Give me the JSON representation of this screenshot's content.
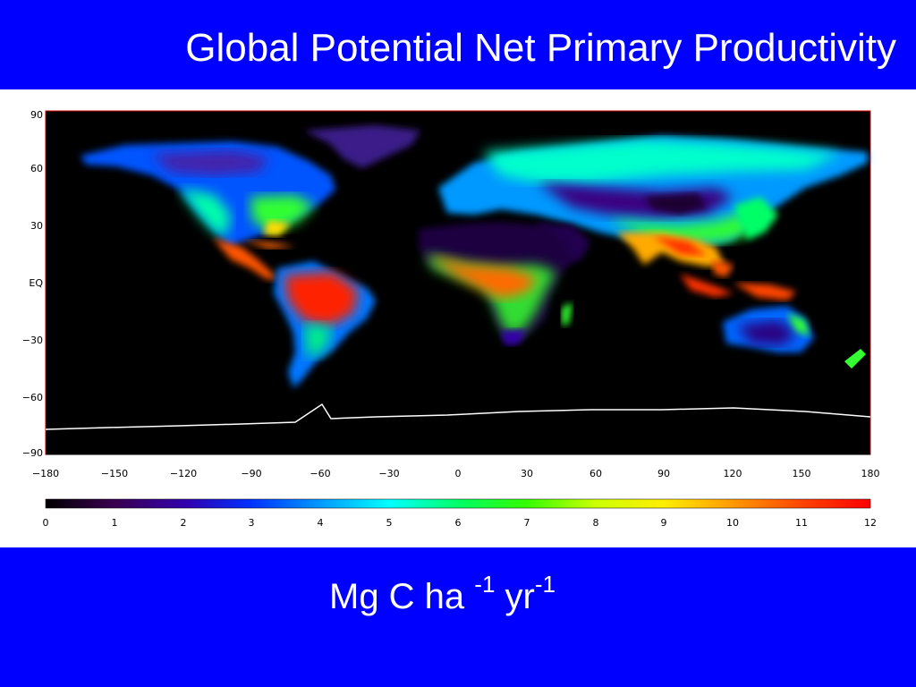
{
  "title": "Global Potential Net Primary Productivity",
  "units": {
    "main": "Mg C ha",
    "exp1": "-1",
    "mid": " yr",
    "exp2": "-1"
  },
  "map": {
    "y_ticks": [
      "90",
      "60",
      "30",
      "EQ",
      "−30",
      "−60",
      "−90"
    ],
    "x_ticks": [
      "−180",
      "−150",
      "−120",
      "−90",
      "−60",
      "−30",
      "0",
      "30",
      "60",
      "90",
      "120",
      "150",
      "180"
    ],
    "background_color": "#000000",
    "coastline_color": "#ffffff"
  },
  "colorbar": {
    "min": 0,
    "max": 12,
    "labels": [
      "0",
      "1",
      "2",
      "3",
      "4",
      "5",
      "6",
      "7",
      "8",
      "9",
      "10",
      "11",
      "12"
    ],
    "colormap": [
      "#000000",
      "#3a0050",
      "#3300aa",
      "#0033ff",
      "#0099ff",
      "#00ffff",
      "#00ff66",
      "#33ff00",
      "#ccff00",
      "#ffee00",
      "#ff9900",
      "#ff4400",
      "#ff0000"
    ]
  },
  "colors": {
    "slide_background": "#0000ff",
    "title_text": "#ffffff",
    "panel_background": "#ffffff"
  }
}
